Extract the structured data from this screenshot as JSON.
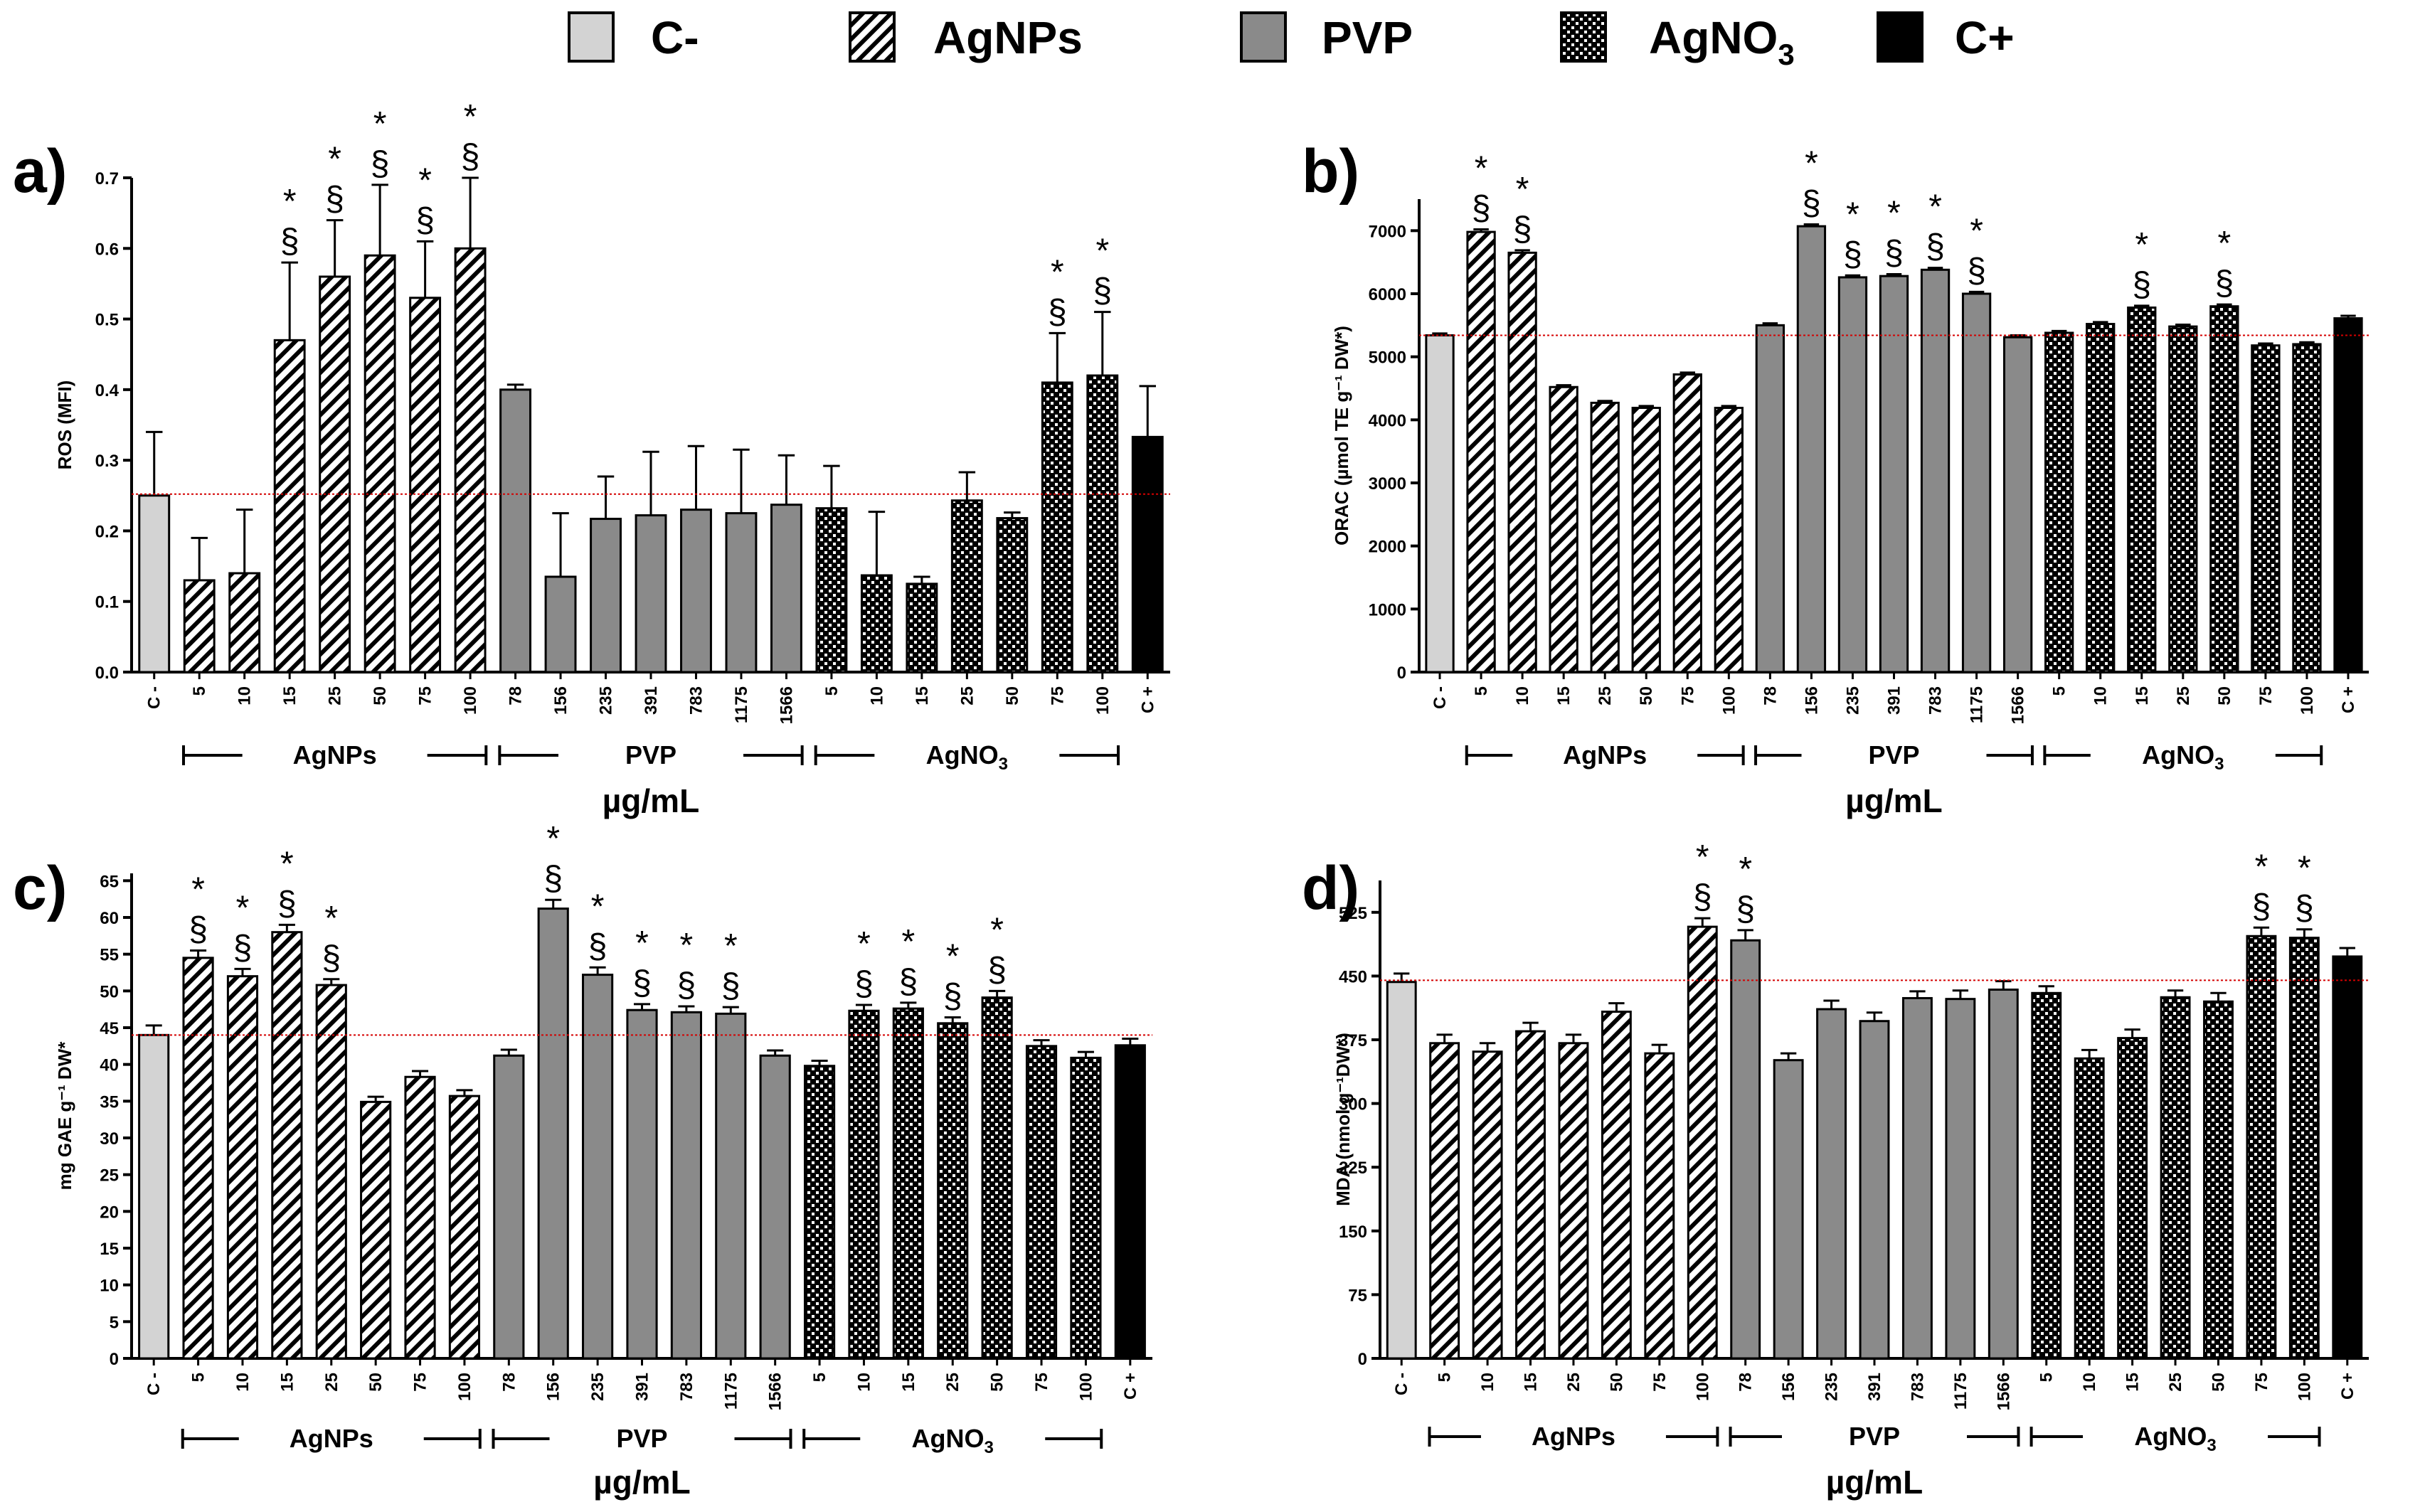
{
  "legend": [
    {
      "key": "ctrl_neg",
      "label": "C-",
      "fill": "light"
    },
    {
      "key": "agnps",
      "label": "AgNPs",
      "fill": "hatch"
    },
    {
      "key": "pvp",
      "label": "PVP",
      "fill": "gray"
    },
    {
      "key": "agno3",
      "label": "AgNO",
      "sub": "3",
      "fill": "checker"
    },
    {
      "key": "ctrl_pos",
      "label": "C+",
      "fill": "black"
    }
  ],
  "colors": {
    "light": "#d3d3d3",
    "gray": "#8a8a8a",
    "black": "#000000",
    "ref_line": "#d40000",
    "hatch_bg": "#ffffff"
  },
  "x_unit_label": "µg/mL",
  "x_categories": [
    "C -",
    "5",
    "10",
    "15",
    "25",
    "50",
    "75",
    "100",
    "78",
    "156",
    "235",
    "391",
    "783",
    "1175",
    "1566",
    "5",
    "10",
    "15",
    "25",
    "50",
    "75",
    "100",
    "C +"
  ],
  "x_groups": [
    {
      "label": "AgNPs",
      "from": 1,
      "to": 7
    },
    {
      "label": "PVP",
      "from": 8,
      "to": 14
    },
    {
      "label": "AgNO",
      "sub": "3",
      "from": 15,
      "to": 21
    }
  ],
  "chart_data": [
    {
      "panel": "a)",
      "type": "bar",
      "ylabel": "ROS (MFI)",
      "ylim": [
        0,
        0.7
      ],
      "yticks": [
        "0.0",
        "0.1",
        "0.2",
        "0.3",
        "0.4",
        "0.5",
        "0.6",
        "0.7"
      ],
      "yticks_values": [
        0,
        0.1,
        0.2,
        0.3,
        0.4,
        0.5,
        0.6,
        0.7
      ],
      "reference_line": 0.252,
      "values": [
        0.25,
        0.13,
        0.14,
        0.47,
        0.56,
        0.59,
        0.53,
        0.6,
        0.4,
        0.135,
        0.217,
        0.222,
        0.23,
        0.225,
        0.237,
        0.232,
        0.137,
        0.125,
        0.243,
        0.218,
        0.41,
        0.42,
        0.333
      ],
      "errors": [
        0.09,
        0.06,
        0.09,
        0.11,
        0.08,
        0.1,
        0.08,
        0.1,
        0.007,
        0.09,
        0.06,
        0.09,
        0.09,
        0.09,
        0.07,
        0.06,
        0.09,
        0.01,
        0.04,
        0.008,
        0.07,
        0.09,
        0.072
      ],
      "marks": [
        {
          "i": 3,
          "text": "*§"
        },
        {
          "i": 4,
          "text": "*§"
        },
        {
          "i": 5,
          "text": "*§"
        },
        {
          "i": 6,
          "text": "*§"
        },
        {
          "i": 7,
          "text": "*§"
        },
        {
          "i": 20,
          "text": "*§"
        },
        {
          "i": 21,
          "text": "*§"
        }
      ]
    },
    {
      "panel": "b)",
      "type": "bar",
      "ylabel": "ORAC (µmol TE g⁻¹ DW*)",
      "ylim": [
        0,
        7500
      ],
      "yticks": [
        "0",
        "1000",
        "2000",
        "3000",
        "4000",
        "5000",
        "6000",
        "7000"
      ],
      "yticks_values": [
        0,
        1000,
        2000,
        3000,
        4000,
        5000,
        6000,
        7000
      ],
      "reference_line": 5340,
      "values": [
        5340,
        6980,
        6650,
        4520,
        4270,
        4190,
        4720,
        4190,
        5500,
        7070,
        6260,
        6280,
        6380,
        6000,
        5310,
        5380,
        5520,
        5780,
        5480,
        5800,
        5180,
        5200,
        5610
      ],
      "errors": [
        30,
        40,
        40,
        30,
        30,
        30,
        30,
        30,
        30,
        30,
        30,
        30,
        30,
        30,
        30,
        30,
        30,
        30,
        30,
        30,
        30,
        30,
        40
      ],
      "marks": [
        {
          "i": 1,
          "text": "*§"
        },
        {
          "i": 2,
          "text": "*§"
        },
        {
          "i": 9,
          "text": "*§"
        },
        {
          "i": 10,
          "text": "*§"
        },
        {
          "i": 11,
          "text": "*§"
        },
        {
          "i": 12,
          "text": "*§"
        },
        {
          "i": 13,
          "text": "*§"
        },
        {
          "i": 17,
          "text": "*§"
        },
        {
          "i": 19,
          "text": "*§"
        }
      ]
    },
    {
      "panel": "c)",
      "type": "bar",
      "ylabel": "mg GAE g⁻¹ DW*",
      "ylim": [
        0,
        66
      ],
      "yticks": [
        "0",
        "5",
        "10",
        "15",
        "20",
        "25",
        "30",
        "35",
        "40",
        "45",
        "50",
        "55",
        "60",
        "65"
      ],
      "yticks_values": [
        0,
        5,
        10,
        15,
        20,
        25,
        30,
        35,
        40,
        45,
        50,
        55,
        60,
        65
      ],
      "reference_line": 44,
      "values": [
        44,
        54.5,
        52,
        58,
        50.8,
        34.9,
        38.3,
        35.7,
        41.2,
        61.2,
        52.2,
        47.4,
        47.1,
        46.9,
        41.2,
        39.8,
        47.3,
        47.6,
        45.6,
        49.1,
        42.5,
        40.9,
        42.6
      ],
      "errors": [
        1.3,
        1.0,
        1.0,
        1.0,
        0.8,
        0.7,
        0.8,
        0.8,
        0.8,
        1.2,
        1.0,
        0.8,
        0.8,
        0.9,
        0.7,
        0.7,
        0.8,
        0.8,
        0.8,
        0.9,
        0.8,
        0.8,
        0.9
      ],
      "marks": [
        {
          "i": 1,
          "text": "*§"
        },
        {
          "i": 2,
          "text": "*§"
        },
        {
          "i": 3,
          "text": "*§"
        },
        {
          "i": 4,
          "text": "*§"
        },
        {
          "i": 9,
          "text": "*§"
        },
        {
          "i": 10,
          "text": "*§"
        },
        {
          "i": 11,
          "text": "*§"
        },
        {
          "i": 12,
          "text": "*§"
        },
        {
          "i": 13,
          "text": "*§"
        },
        {
          "i": 16,
          "text": "*§"
        },
        {
          "i": 17,
          "text": "*§"
        },
        {
          "i": 18,
          "text": "*§"
        },
        {
          "i": 19,
          "text": "*§"
        }
      ]
    },
    {
      "panel": "d)",
      "type": "bar",
      "ylabel": "MDA (nmol g⁻¹DW*)",
      "ylim": [
        0,
        562.5
      ],
      "yticks": [
        "0",
        "75",
        "150",
        "225",
        "300",
        "375",
        "450",
        "525"
      ],
      "yticks_values": [
        0,
        75,
        150,
        225,
        300,
        375,
        450,
        525
      ],
      "reference_line": 445,
      "values": [
        443,
        371,
        361,
        385,
        371,
        408,
        359,
        508,
        492,
        351,
        411,
        397,
        424,
        423,
        434,
        430,
        353,
        377,
        425,
        420,
        497,
        495,
        473
      ],
      "errors": [
        10,
        10,
        10,
        10,
        10,
        10,
        10,
        10,
        12,
        8,
        10,
        10,
        8,
        10,
        10,
        8,
        10,
        10,
        8,
        10,
        10,
        10,
        10
      ],
      "marks": [
        {
          "i": 7,
          "text": "*§"
        },
        {
          "i": 8,
          "text": "*§"
        },
        {
          "i": 20,
          "text": "*§"
        },
        {
          "i": 21,
          "text": "*§"
        }
      ]
    }
  ]
}
